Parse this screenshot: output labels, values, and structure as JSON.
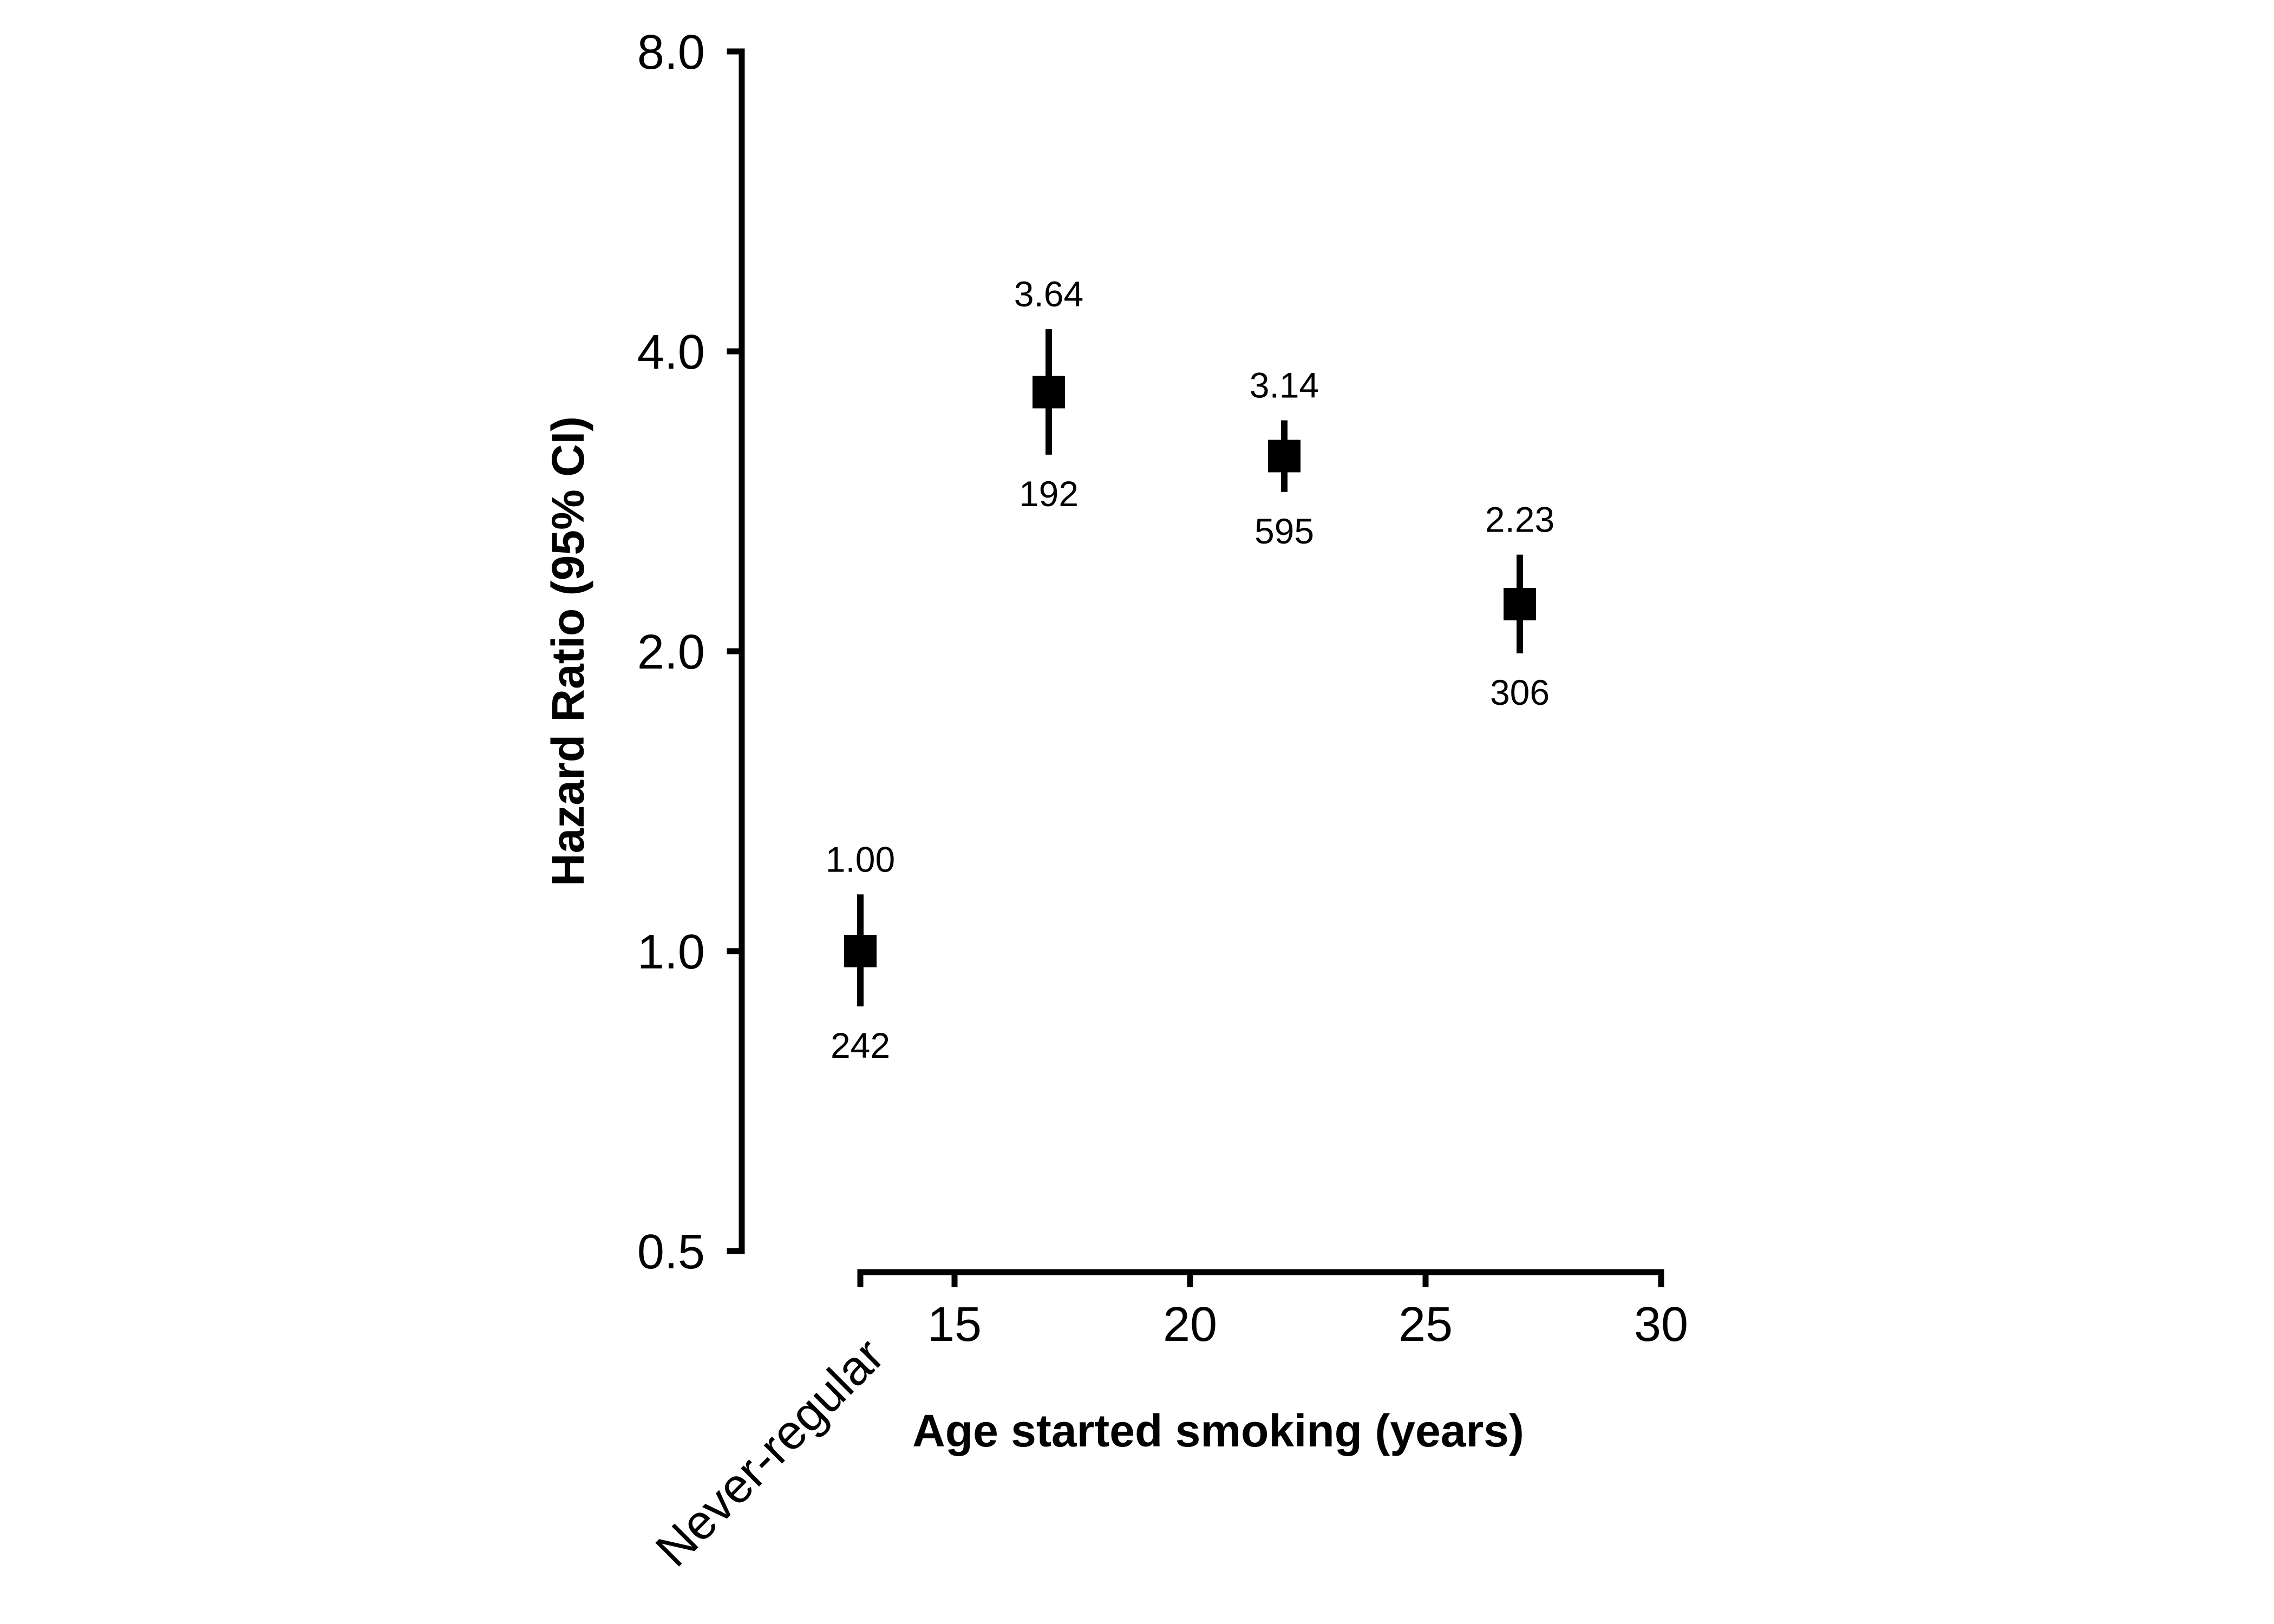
{
  "figure": {
    "background": "#ffffff",
    "foreground": "#000000"
  },
  "chart_data": {
    "type": "scatter",
    "subtype": "point-estimates-with-95ci-error-bars",
    "title": "",
    "xlabel": "Age started smoking (years)",
    "ylabel": "Hazard Ratio (95% CI)",
    "marker": "filled-square",
    "grid": false,
    "legend": "none",
    "x_axis": {
      "range": [
        13,
        30
      ],
      "scale": "linear",
      "ticks": [
        {
          "v": 13,
          "label": "Never-regular",
          "rotated": true
        },
        {
          "v": 15,
          "label": "15",
          "rotated": false
        },
        {
          "v": 20,
          "label": "20",
          "rotated": false
        },
        {
          "v": 25,
          "label": "25",
          "rotated": false
        },
        {
          "v": 30,
          "label": "30",
          "rotated": false
        }
      ]
    },
    "y_axis": {
      "range": [
        0.5,
        8.0
      ],
      "scale": "log",
      "ticks": [
        {
          "v": 8.0,
          "label": "8.0"
        },
        {
          "v": 4.0,
          "label": "4.0"
        },
        {
          "v": 2.0,
          "label": "2.0"
        },
        {
          "v": 1.0,
          "label": "1.0"
        },
        {
          "v": 0.5,
          "label": "0.5"
        }
      ]
    },
    "series": [
      {
        "category": "Never-regular",
        "x": 13,
        "hr": 1.0,
        "hr_label": "1.00",
        "ci_low": 0.88,
        "ci_high": 1.14,
        "n": 242,
        "n_label": "242"
      },
      {
        "category": "17",
        "x": 17,
        "hr": 3.64,
        "hr_label": "3.64",
        "ci_low": 3.15,
        "ci_high": 4.21,
        "n": 192,
        "n_label": "192"
      },
      {
        "category": "22",
        "x": 22,
        "hr": 3.14,
        "hr_label": "3.14",
        "ci_low": 2.89,
        "ci_high": 3.41,
        "n": 595,
        "n_label": "595"
      },
      {
        "category": "27",
        "x": 27,
        "hr": 2.23,
        "hr_label": "2.23",
        "ci_low": 1.99,
        "ci_high": 2.5,
        "n": 306,
        "n_label": "306"
      }
    ]
  }
}
